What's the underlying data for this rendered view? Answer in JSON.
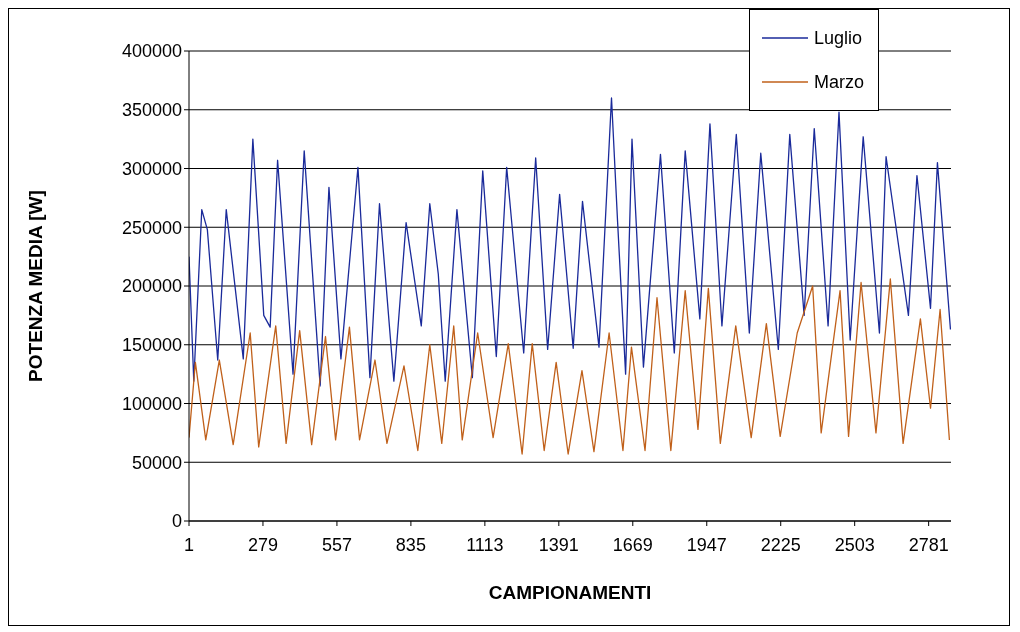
{
  "chart_data": {
    "type": "line",
    "xlabel": "CAMPIONAMENTI",
    "ylabel": "POTENZA MEDIA [W]",
    "xlim": [
      1,
      2865
    ],
    "xticks": [
      1,
      279,
      557,
      835,
      1113,
      1391,
      1669,
      1947,
      2225,
      2503,
      2781
    ],
    "ylim": [
      0,
      400000
    ],
    "yticks": [
      0,
      50000,
      100000,
      150000,
      200000,
      250000,
      300000,
      350000,
      400000
    ],
    "grid": "y",
    "legend": "top right",
    "line_style": "solid",
    "marker": "none",
    "series": [
      {
        "name": "Luglio",
        "color": "#1a2a9a",
        "x": [
          1,
          19,
          49,
          70,
          109,
          141,
          205,
          241,
          282,
          306,
          334,
          392,
          434,
          494,
          527,
          572,
          636,
          681,
          717,
          771,
          817,
          874,
          906,
          938,
          964,
          1008,
          1066,
          1105,
          1156,
          1195,
          1259,
          1304,
          1349,
          1394,
          1445,
          1480,
          1542,
          1589,
          1612,
          1642,
          1666,
          1709,
          1773,
          1825,
          1866,
          1921,
          1959,
          2004,
          2058,
          2107,
          2150,
          2216,
          2259,
          2313,
          2351,
          2403,
          2444,
          2486,
          2535,
          2596,
          2621,
          2705,
          2737,
          2788,
          2814,
          2863
        ],
        "values": [
          225000,
          119000,
          265000,
          248000,
          137000,
          265000,
          138000,
          325000,
          175000,
          165000,
          307000,
          125000,
          315000,
          115000,
          284000,
          138000,
          301000,
          122000,
          270000,
          119000,
          254000,
          166000,
          270000,
          210000,
          119000,
          265000,
          122000,
          298000,
          140000,
          301000,
          143000,
          309000,
          146000,
          278000,
          147000,
          272000,
          148000,
          360000,
          254000,
          125000,
          325000,
          131000,
          312000,
          143000,
          315000,
          172000,
          338000,
          166000,
          329000,
          160000,
          313000,
          146000,
          329000,
          175000,
          334000,
          166000,
          348000,
          154000,
          327000,
          160000,
          310000,
          175000,
          294000,
          181000,
          305000,
          163000
        ]
      },
      {
        "name": "Marzo",
        "color": "#c0601a",
        "x": [
          1,
          25,
          64,
          115,
          167,
          231,
          263,
          327,
          366,
          417,
          462,
          514,
          552,
          604,
          642,
          700,
          745,
          809,
          861,
          906,
          951,
          996,
          1028,
          1086,
          1144,
          1201,
          1253,
          1291,
          1336,
          1381,
          1426,
          1478,
          1523,
          1580,
          1632,
          1664,
          1715,
          1760,
          1812,
          1866,
          1914,
          1953,
          1998,
          2056,
          2114,
          2171,
          2223,
          2287,
          2345,
          2377,
          2448,
          2480,
          2527,
          2583,
          2637,
          2685,
          2750,
          2788,
          2824,
          2859
        ],
        "values": [
          71000,
          135000,
          69000,
          137000,
          65000,
          160000,
          63000,
          166000,
          66000,
          162000,
          65000,
          157000,
          69000,
          165000,
          69000,
          137000,
          66000,
          132000,
          60000,
          150000,
          66000,
          166000,
          69000,
          160000,
          71000,
          151000,
          57000,
          151000,
          60000,
          135000,
          57000,
          128000,
          59000,
          160000,
          60000,
          148000,
          60000,
          190000,
          60000,
          196000,
          78000,
          198000,
          66000,
          166000,
          71000,
          168000,
          72000,
          160000,
          200000,
          75000,
          196000,
          72000,
          203000,
          75000,
          206000,
          66000,
          172000,
          96000,
          180000,
          69000
        ]
      }
    ]
  }
}
